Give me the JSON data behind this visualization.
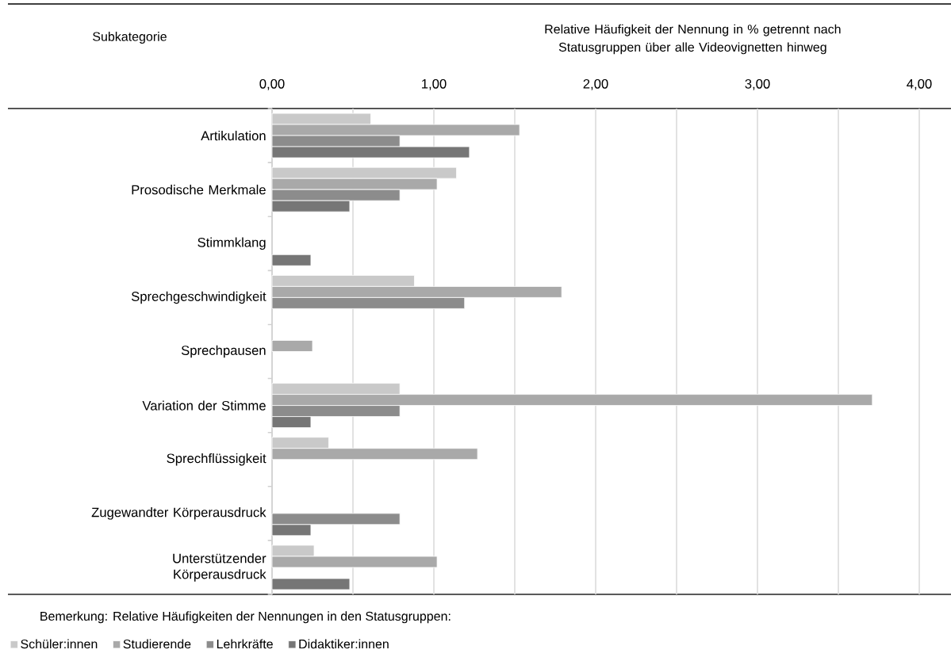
{
  "chart_data": {
    "type": "bar",
    "orientation": "horizontal",
    "ylabel": "Subkategorie",
    "xlabel": "Relative Häufigkeit der Nennung in % getrennt nach Statusgruppen über alle Videovignetten hinweg",
    "categories": [
      "Artikulation",
      "Prosodische Merkmale",
      "Stimmklang",
      "Sprechgeschwindigkeit",
      "Sprechpausen",
      "Variation der Stimme",
      "Sprechflüssigkeit",
      "Zugewandter Körperausdruck",
      "Unterstützender Körperausdruck"
    ],
    "series": [
      {
        "name": "Schüler:innen",
        "color": "#c9c9c9",
        "values": [
          0.61,
          1.14,
          null,
          0.88,
          null,
          0.79,
          0.35,
          null,
          0.26
        ]
      },
      {
        "name": "Studierende",
        "color": "#a9a9a9",
        "values": [
          1.53,
          1.02,
          null,
          1.79,
          0.25,
          3.71,
          1.27,
          null,
          1.02
        ]
      },
      {
        "name": "Lehrkräfte",
        "color": "#8c8c8c",
        "values": [
          0.79,
          0.79,
          null,
          1.19,
          null,
          0.79,
          null,
          0.79,
          null
        ]
      },
      {
        "name": "Didaktiker:innen",
        "color": "#767676",
        "values": [
          1.22,
          0.48,
          0.24,
          null,
          null,
          0.24,
          null,
          0.24,
          0.48
        ]
      }
    ],
    "xlim": [
      0,
      4
    ],
    "xticks": [
      {
        "value": 0,
        "label": "0,00"
      },
      {
        "value": 0.5,
        "label": null
      },
      {
        "value": 1,
        "label": "1,00"
      },
      {
        "value": 1.5,
        "label": null
      },
      {
        "value": 2,
        "label": "2,00"
      },
      {
        "value": 2.5,
        "label": null
      },
      {
        "value": 3,
        "label": "3,00"
      },
      {
        "value": 3.5,
        "label": null
      },
      {
        "value": 4,
        "label": "4,00"
      }
    ],
    "grid": "x",
    "legend": "bottom",
    "annotations": [
      "Bemerkung: Relative Häufigkeiten der Nennungen in den Statusgruppen:"
    ]
  }
}
